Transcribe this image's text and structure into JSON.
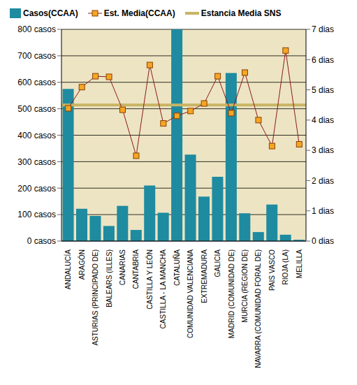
{
  "chart_data": {
    "type": "bar",
    "categories": [
      "ANDALUCÍA",
      "ARAGÓN",
      "ASTURIAS (PRINCIPADO DE)",
      "BALEARS (ILLES)",
      "CANARIAS",
      "CANTABRIA",
      "CASTILLA Y LEÓN",
      "CASTILLA - LA MANCHA",
      "CATALUÑA",
      "COMUNIDAD VALENCIANA",
      "EXTREMADURA",
      "GALICIA",
      "MADRID (COMUNIDAD DE)",
      "MURCIA (REGION DE)",
      "NAVARRA (COMUNIDAD FORAL DE)",
      "PAIS VASCO",
      "RIOJA (LA)",
      "MELILLA"
    ],
    "series": [
      {
        "name": "Casos(CCAA)",
        "type": "bar",
        "color": "#1E8BA0",
        "values": [
          575,
          122,
          95,
          57,
          133,
          42,
          210,
          107,
          800,
          327,
          168,
          243,
          635,
          105,
          34,
          138,
          24,
          5
        ]
      },
      {
        "name": "Est. Media(CCAA)",
        "type": "line",
        "axis": "y2",
        "color": "#8B1A1A",
        "marker": "square",
        "values": [
          4.39,
          5.09,
          5.45,
          5.43,
          4.34,
          2.82,
          5.82,
          3.89,
          4.14,
          4.3,
          4.55,
          5.45,
          4.23,
          5.57,
          4.0,
          3.14,
          6.3,
          3.2
        ]
      }
    ],
    "reference": {
      "name": "Estancia Media SNS",
      "value": 4.5,
      "axis": "y2",
      "color": "#C8B464"
    },
    "ylim": [
      0,
      800
    ],
    "yticks": [
      {
        "value": 0,
        "label": "0 casos"
      },
      {
        "value": 100,
        "label": "100 casos"
      },
      {
        "value": 200,
        "label": "200 casos"
      },
      {
        "value": 300,
        "label": "300 casos"
      },
      {
        "value": 400,
        "label": "400 casos"
      },
      {
        "value": 500,
        "label": "500 casos"
      },
      {
        "value": 600,
        "label": "600 casos"
      },
      {
        "value": 700,
        "label": "700 casos"
      },
      {
        "value": 800,
        "label": "800 casos"
      }
    ],
    "y2lim": [
      0,
      7
    ],
    "y2ticks": [
      {
        "value": 0,
        "label": "0 dias"
      },
      {
        "value": 1,
        "label": "1 dias"
      },
      {
        "value": 2,
        "label": "2 dias"
      },
      {
        "value": 3,
        "label": "3 dias"
      },
      {
        "value": 4,
        "label": "4 dias"
      },
      {
        "value": 5,
        "label": "5 dias"
      },
      {
        "value": 6,
        "label": "6 dias"
      },
      {
        "value": 7,
        "label": "7 dias"
      }
    ],
    "grid": true,
    "legend": "top"
  }
}
